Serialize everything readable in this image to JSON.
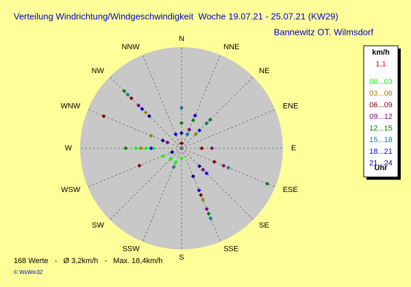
{
  "chart_data": {
    "type": "polar-scatter",
    "title": "Verteilung Windrichtung/Windgeschwindigkeit  Woche 19.07.21 - 25.07.21 (KW29)",
    "subtitle": "Bannewitz OT. Wilmsdorf",
    "directions": [
      "N",
      "NNE",
      "NE",
      "ENE",
      "E",
      "ESE",
      "SE",
      "SSE",
      "S",
      "SSW",
      "SW",
      "WSW",
      "W",
      "WNW",
      "NW",
      "NNW"
    ],
    "rlim": [
      0,
      20
    ],
    "legend_title": "km/h",
    "legend_note": "1,1",
    "legend_footer": "Uhr",
    "series": [
      {
        "name": "00...03",
        "color": "#00ff00",
        "x": [
          270,
          270,
          247.5,
          225,
          180,
          202.5,
          270
        ],
        "values": [
          5.5,
          7,
          4,
          3,
          2,
          3,
          9
        ]
      },
      {
        "name": "03...06",
        "color": "#a08000",
        "x": [
          292.5,
          270,
          315,
          157.5,
          135,
          45
        ],
        "values": [
          6.5,
          8,
          10,
          11,
          6,
          4
        ]
      },
      {
        "name": "06...09",
        "color": "#800000",
        "x": [
          292.5,
          247.5,
          315,
          90,
          112.5,
          157.5,
          0
        ],
        "values": [
          16.6,
          9,
          14,
          4,
          7,
          10,
          1
        ]
      },
      {
        "name": "09...12",
        "color": "#800080",
        "x": [
          315,
          112.5,
          135,
          90,
          22.5,
          157.5,
          292.5
        ],
        "values": [
          12,
          9,
          6,
          6,
          4,
          13,
          3
        ]
      },
      {
        "name": "12...15",
        "color": "#008000",
        "x": [
          22.5,
          45,
          315,
          112.5,
          157.5,
          270,
          0
        ],
        "values": [
          6,
          8,
          16,
          18.3,
          14,
          11,
          5
        ]
      },
      {
        "name": "15...18",
        "color": "#008080",
        "x": [
          0,
          315,
          45,
          22.5,
          157.5,
          112.5,
          202.5
        ],
        "values": [
          8,
          15,
          7,
          3,
          15,
          10,
          4
        ]
      },
      {
        "name": "18...21",
        "color": "#0000ff",
        "x": [
          315,
          135,
          157.5,
          22.5,
          45,
          270,
          337.5
        ],
        "values": [
          11,
          7,
          9,
          7,
          5,
          6,
          3
        ]
      },
      {
        "name": "21...24",
        "color": "#000080",
        "x": [
          315,
          292.5,
          135,
          0,
          247.5,
          157.5
        ],
        "values": [
          9,
          4,
          5,
          3,
          2,
          6
        ]
      }
    ],
    "footer": "168 Werte   -   Ø 3,2km/h   -   Max. 18,4km/h",
    "copyright": "© WsWin32"
  }
}
